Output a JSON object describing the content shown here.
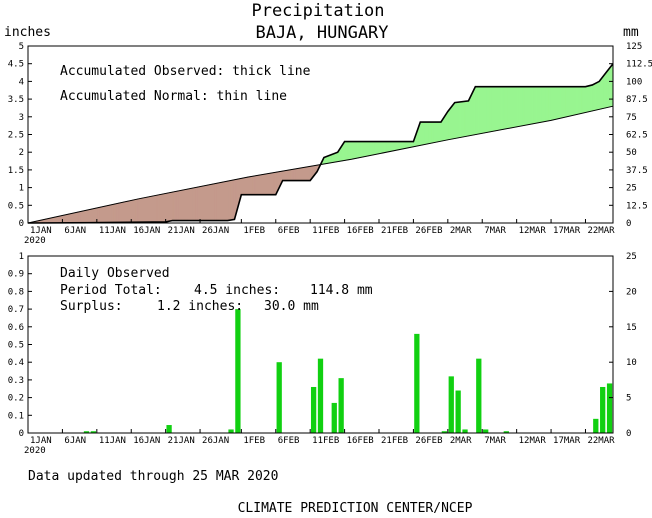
{
  "header": {
    "title": "Precipitation",
    "subtitle": "BAJA, HUNGARY",
    "left_unit": "inches",
    "right_unit": "mm"
  },
  "colors": {
    "deficit": "#c49a8c",
    "surplus": "#98f590",
    "bar": "#11d011",
    "line": "#000000"
  },
  "x_axis": {
    "ticks": [
      {
        "day": 0,
        "label": "1JAN",
        "sub": "2020"
      },
      {
        "day": 5,
        "label": "6JAN",
        "sub": ""
      },
      {
        "day": 10,
        "label": "11JAN",
        "sub": ""
      },
      {
        "day": 15,
        "label": "16JAN",
        "sub": ""
      },
      {
        "day": 20,
        "label": "21JAN",
        "sub": ""
      },
      {
        "day": 25,
        "label": "26JAN",
        "sub": ""
      },
      {
        "day": 31,
        "label": "1FEB",
        "sub": ""
      },
      {
        "day": 36,
        "label": "6FEB",
        "sub": ""
      },
      {
        "day": 41,
        "label": "11FEB",
        "sub": ""
      },
      {
        "day": 46,
        "label": "16FEB",
        "sub": ""
      },
      {
        "day": 51,
        "label": "21FEB",
        "sub": ""
      },
      {
        "day": 56,
        "label": "26FEB",
        "sub": ""
      },
      {
        "day": 61,
        "label": "2MAR",
        "sub": ""
      },
      {
        "day": 66,
        "label": "7MAR",
        "sub": ""
      },
      {
        "day": 71,
        "label": "12MAR",
        "sub": ""
      },
      {
        "day": 76,
        "label": "17MAR",
        "sub": ""
      },
      {
        "day": 81,
        "label": "22MAR",
        "sub": ""
      }
    ]
  },
  "top_panel": {
    "legend_observed": "Accumulated Observed: thick line",
    "legend_normal": "Accumulated Normal: thin line",
    "y_left_ticks": [
      "0",
      "0.5",
      "1",
      "1.5",
      "2",
      "2.5",
      "3",
      "3.5",
      "4",
      "4.5",
      "5"
    ],
    "y_right_ticks": [
      "0",
      "12.5",
      "25",
      "37.5",
      "50",
      "62.5",
      "75",
      "87.5",
      "100",
      "112.5",
      "125"
    ]
  },
  "bottom_panel": {
    "label": "Daily Observed",
    "period_total_label": "Period Total:",
    "period_total_in": "4.5 inches:",
    "period_total_mm": "114.8 mm",
    "surplus_label": "Surplus:",
    "surplus_in": "1.2 inches:",
    "surplus_mm": "30.0 mm",
    "y_left_ticks": [
      "0",
      "0.1",
      "0.2",
      "0.3",
      "0.4",
      "0.5",
      "0.6",
      "0.7",
      "0.8",
      "0.9",
      "1"
    ],
    "y_right_ticks": [
      "0",
      "5",
      "10",
      "15",
      "20",
      "25"
    ]
  },
  "footer": {
    "updated": "Data updated through 25 MAR 2020",
    "credit": "CLIMATE PREDICTION CENTER/NCEP"
  },
  "chart_data": {
    "type": "line",
    "x_start": "2020-01-01",
    "x_end": "2020-03-25",
    "accumulated_observed_in": [
      [
        "2020-01-01",
        0
      ],
      [
        "2020-01-09",
        0.01
      ],
      [
        "2020-01-20",
        0.03
      ],
      [
        "2020-01-21",
        0.07
      ],
      [
        "2020-01-29",
        0.07
      ],
      [
        "2020-01-30",
        0.1
      ],
      [
        "2020-01-31",
        0.8
      ],
      [
        "2020-02-05",
        0.8
      ],
      [
        "2020-02-06",
        1.2
      ],
      [
        "2020-02-10",
        1.2
      ],
      [
        "2020-02-11",
        1.45
      ],
      [
        "2020-02-12",
        1.85
      ],
      [
        "2020-02-14",
        2.0
      ],
      [
        "2020-02-15",
        2.3
      ],
      [
        "2020-02-25",
        2.3
      ],
      [
        "2020-02-26",
        2.85
      ],
      [
        "2020-02-29",
        2.85
      ],
      [
        "2020-03-01",
        3.15
      ],
      [
        "2020-03-02",
        3.4
      ],
      [
        "2020-03-04",
        3.45
      ],
      [
        "2020-03-05",
        3.85
      ],
      [
        "2020-03-20",
        3.85
      ],
      [
        "2020-03-21",
        3.85
      ],
      [
        "2020-03-22",
        3.9
      ],
      [
        "2020-03-23",
        4.0
      ],
      [
        "2020-03-24",
        4.25
      ],
      [
        "2020-03-25",
        4.5
      ]
    ],
    "accumulated_normal_in": [
      [
        "2020-01-01",
        0
      ],
      [
        "2020-01-16",
        0.68
      ],
      [
        "2020-02-01",
        1.3
      ],
      [
        "2020-02-16",
        1.8
      ],
      [
        "2020-03-01",
        2.35
      ],
      [
        "2020-03-16",
        2.9
      ],
      [
        "2020-03-25",
        3.3
      ]
    ],
    "daily_observed_in": [
      [
        "2020-01-09",
        0.01
      ],
      [
        "2020-01-10",
        0.01
      ],
      [
        "2020-01-21",
        0.045
      ],
      [
        "2020-01-30",
        0.02
      ],
      [
        "2020-01-31",
        0.7
      ],
      [
        "2020-02-06",
        0.4
      ],
      [
        "2020-02-11",
        0.26
      ],
      [
        "2020-02-12",
        0.42
      ],
      [
        "2020-02-14",
        0.17
      ],
      [
        "2020-02-15",
        0.31
      ],
      [
        "2020-02-26",
        0.56
      ],
      [
        "2020-03-01",
        0.01
      ],
      [
        "2020-03-02",
        0.32
      ],
      [
        "2020-03-03",
        0.24
      ],
      [
        "2020-03-04",
        0.02
      ],
      [
        "2020-03-06",
        0.42
      ],
      [
        "2020-03-07",
        0.02
      ],
      [
        "2020-03-10",
        0.01
      ],
      [
        "2020-03-23",
        0.08
      ],
      [
        "2020-03-24",
        0.26
      ],
      [
        "2020-03-25",
        0.28
      ]
    ],
    "top_ylim_in": [
      0,
      5
    ],
    "bottom_ylim_in": [
      0,
      1
    ],
    "grid": false
  }
}
